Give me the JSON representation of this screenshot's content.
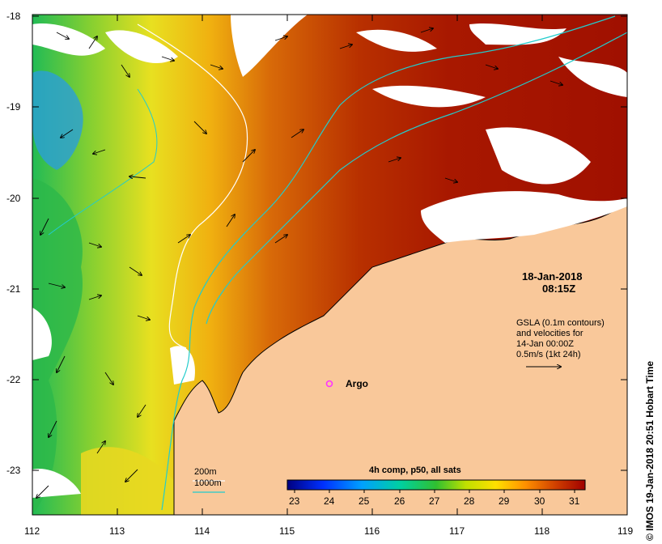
{
  "map": {
    "lat_ticks": [
      "-18",
      "-19",
      "-20",
      "-21",
      "-22",
      "-23"
    ],
    "lon_ticks": [
      "112",
      "113",
      "114",
      "115",
      "116",
      "117",
      "118",
      "119"
    ],
    "date_line1": "18-Jan-2018",
    "date_line2": "08:15Z",
    "gsla_lines": [
      "GSLA (0.1m contours)",
      "and velocities for",
      "14-Jan 00:00Z",
      "0.5m/s (1kt 24h)"
    ],
    "argo_label": "Argo",
    "credit": "© IMOS 19-Jan-2018 20:51 Hobart Time",
    "bathy_legend": [
      {
        "label": "200m",
        "color": "#ffffff"
      },
      {
        "label": "1000m",
        "color": "#22cccc"
      }
    ],
    "colorbar": {
      "title": "4h comp, p50, all sats",
      "ticks": [
        "23",
        "24",
        "25",
        "26",
        "27",
        "28",
        "29",
        "30",
        "31"
      ]
    },
    "colors": {
      "land": "#f9c89a",
      "argo": "#ff33ff",
      "contour": "#22cccc"
    }
  }
}
